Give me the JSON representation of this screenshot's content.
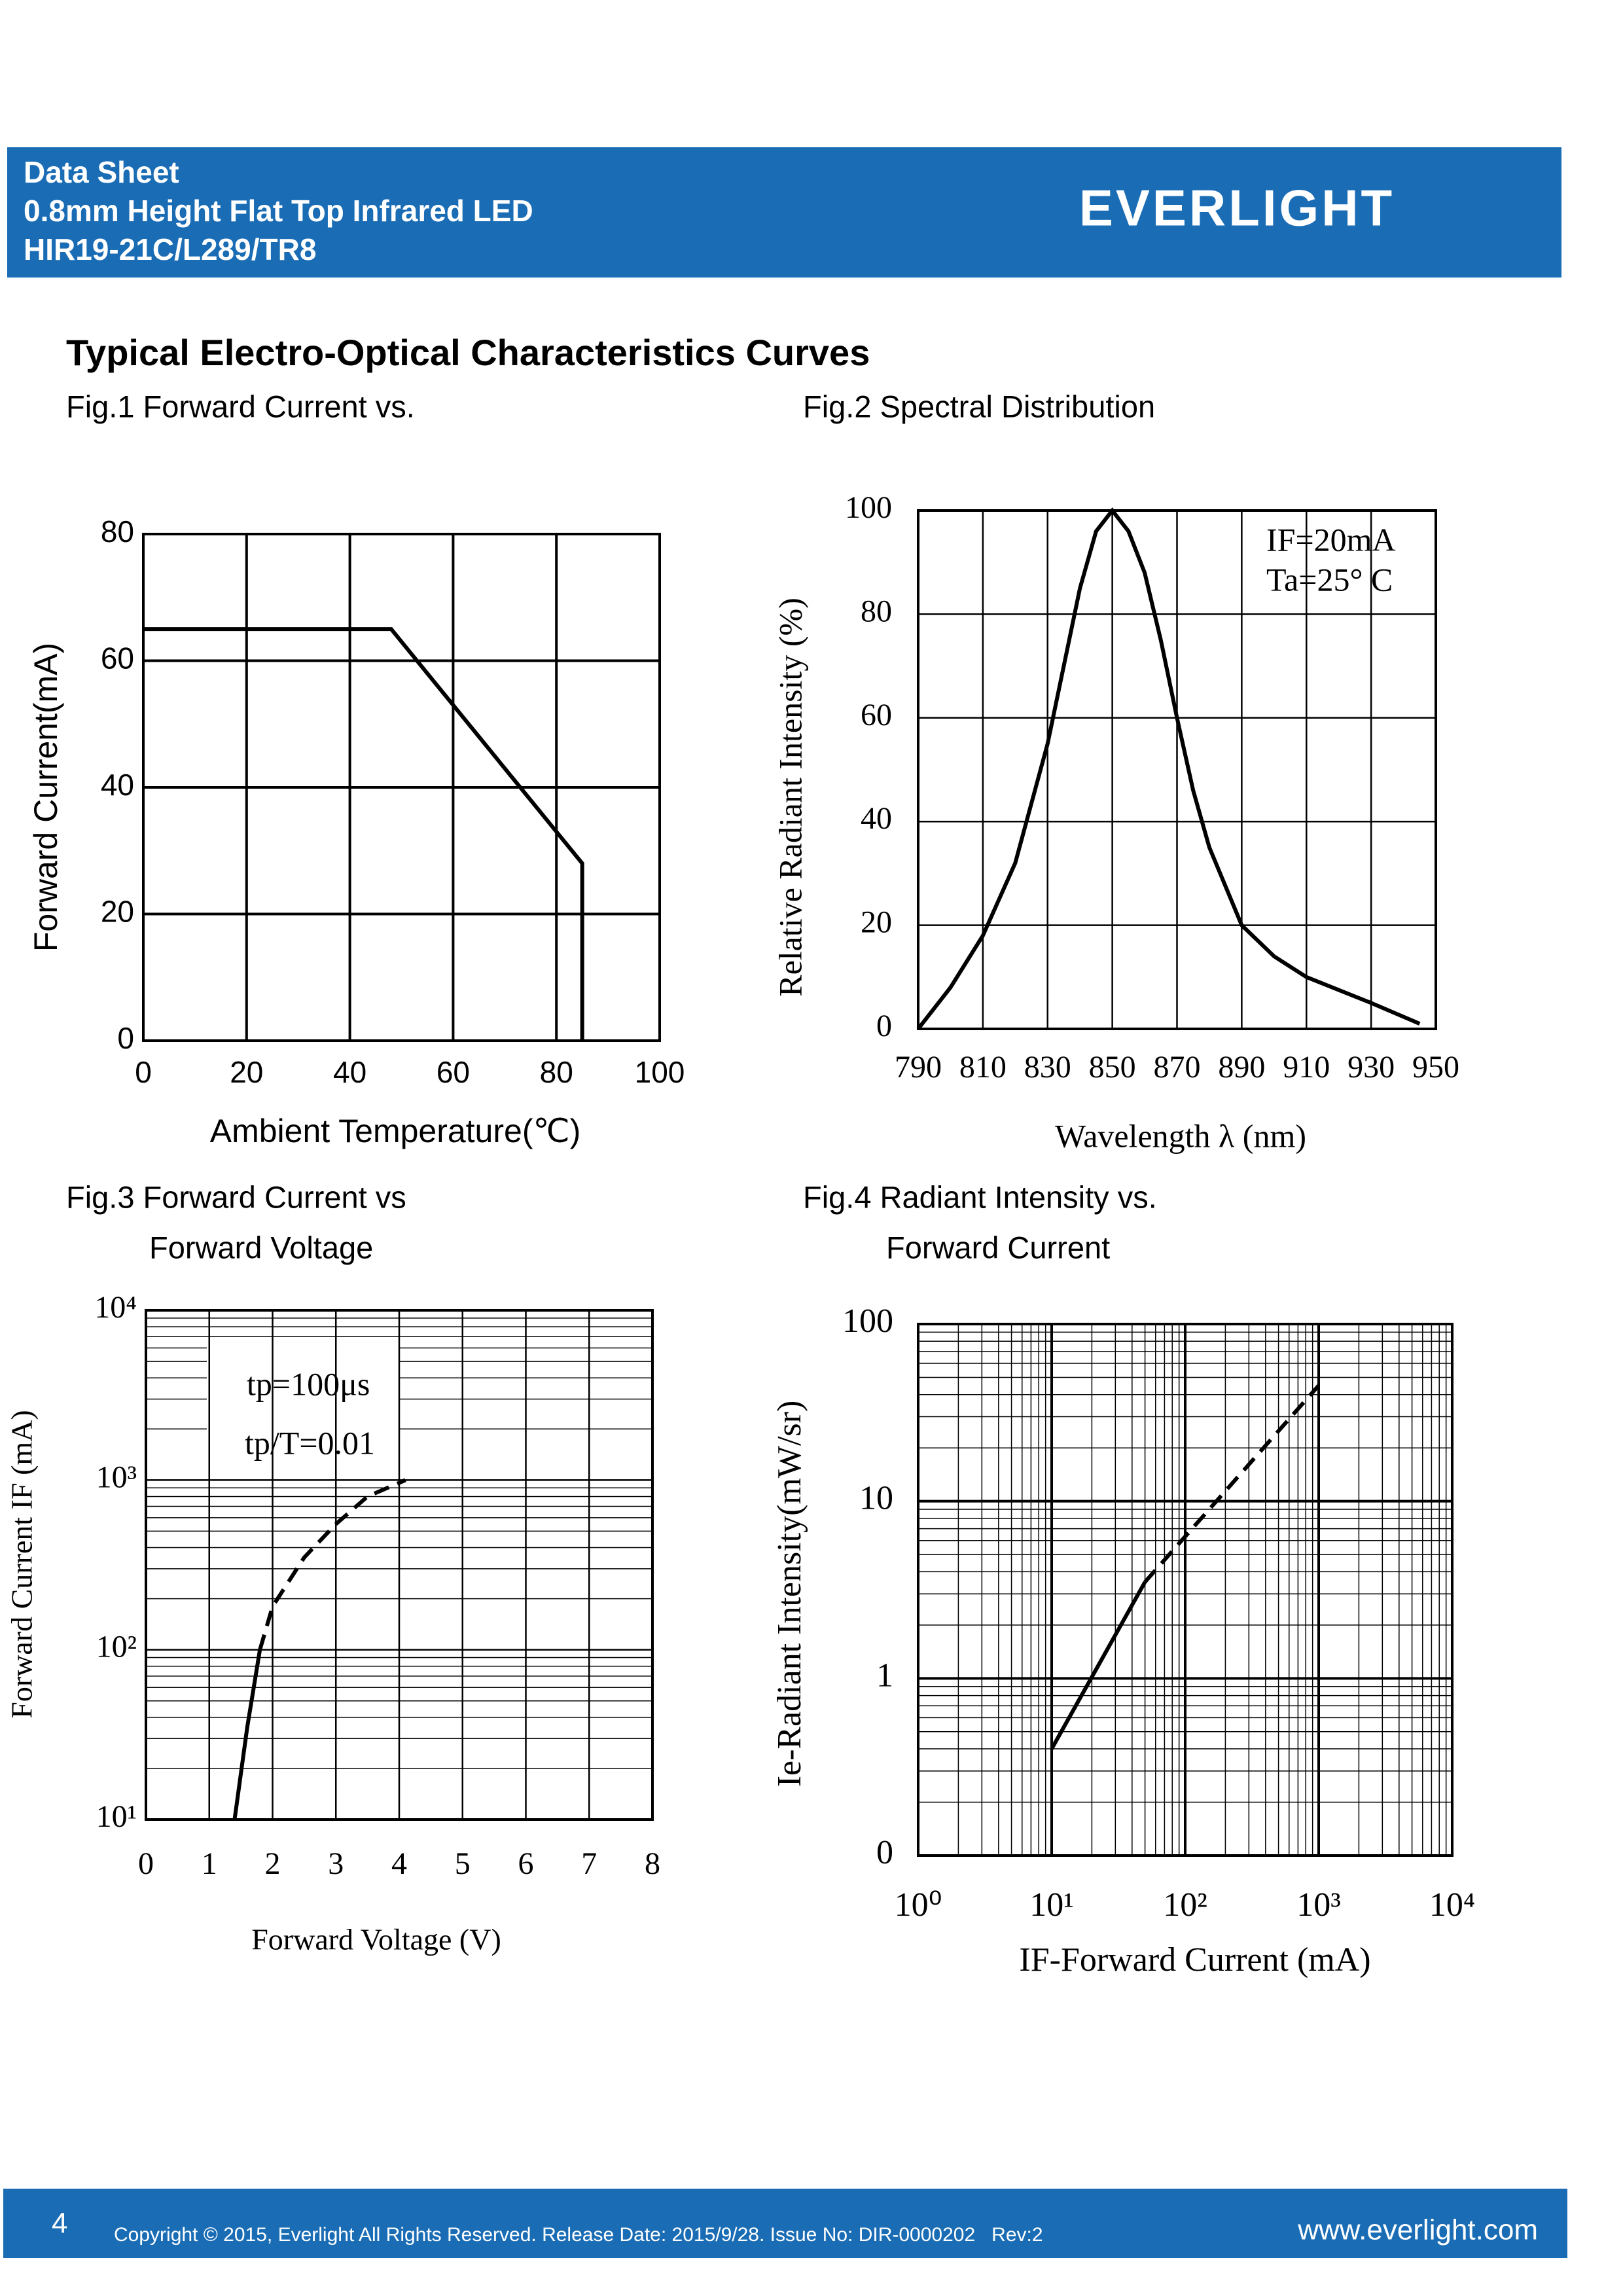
{
  "header": {
    "lines": [
      "Data Sheet",
      "0.8mm Height Flat Top Infrared LED",
      "HIR19-21C/L289/TR8"
    ],
    "logo": "EVERLIGHT"
  },
  "section_title": "Typical Electro-Optical Characteristics Curves",
  "chart_data": [
    {
      "type": "line",
      "title": [
        "Fig.1 Forward Current vs."
      ],
      "xlabel": "Ambient Temperature(℃)",
      "ylabel": "Forward Current(mA)",
      "xlim": [
        0,
        100
      ],
      "xticks": [
        0,
        20,
        40,
        60,
        80,
        100
      ],
      "ylim": [
        0,
        80
      ],
      "yticks": [
        0,
        20,
        40,
        60,
        80
      ],
      "grid": true,
      "series": [
        {
          "color": "#000000",
          "dashed": false,
          "x": [
            0,
            48,
            85,
            85
          ],
          "values": [
            65,
            65,
            28,
            0
          ]
        }
      ]
    },
    {
      "type": "line",
      "title": [
        "Fig.2 Spectral Distribution"
      ],
      "xlabel": "Wavelength λ (nm)",
      "ylabel": "Relative Radiant Intensity (%)",
      "xlim": [
        790,
        950
      ],
      "xticks": [
        790,
        810,
        830,
        850,
        870,
        890,
        910,
        930,
        950
      ],
      "ylim": [
        0,
        100
      ],
      "yticks": [
        0,
        20,
        40,
        60,
        80,
        100
      ],
      "grid": true,
      "annotations": [
        "IF=20mA",
        "Ta=25° C"
      ],
      "series": [
        {
          "color": "#000000",
          "dashed": false,
          "x": [
            790,
            800,
            810,
            820,
            830,
            835,
            840,
            845,
            850,
            855,
            860,
            865,
            870,
            875,
            880,
            890,
            900,
            910,
            930,
            945
          ],
          "values": [
            0,
            8,
            18,
            32,
            55,
            70,
            85,
            96,
            100,
            96,
            88,
            75,
            60,
            46,
            35,
            20,
            14,
            10,
            5,
            1
          ]
        }
      ]
    },
    {
      "type": "line",
      "title": [
        "Fig.3 Forward Current vs",
        "Forward Voltage"
      ],
      "xlabel": "Forward Voltage (V)",
      "ylabel": "Forward Current IF (mA)",
      "xlim": [
        0,
        8
      ],
      "xticks": [
        0,
        1,
        2,
        3,
        4,
        5,
        6,
        7,
        8
      ],
      "ylim": [
        10,
        10000
      ],
      "ylog": true,
      "yticks": [
        {
          "value": 10,
          "label": "10¹"
        },
        {
          "value": 100,
          "label": "10²"
        },
        {
          "value": 1000,
          "label": "10³"
        },
        {
          "value": 10000,
          "label": "10⁴"
        }
      ],
      "grid": true,
      "annotations": [
        "tp=100μs",
        "tp/T=0.01"
      ],
      "series": [
        {
          "color": "#000000",
          "dashed": false,
          "x": [
            1.4,
            1.6,
            1.8
          ],
          "values": [
            10,
            35,
            100
          ]
        },
        {
          "color": "#000000",
          "dashed": true,
          "x": [
            1.8,
            2.0,
            2.5,
            3.0,
            3.5,
            4.1
          ],
          "values": [
            100,
            180,
            350,
            550,
            800,
            1000
          ]
        }
      ]
    },
    {
      "type": "line",
      "title": [
        "Fig.4 Radiant Intensity vs.",
        "Forward Current"
      ],
      "xlabel": "IF-Forward Current (mA)",
      "ylabel": "Ie-Radiant Intensity(mW/sr)",
      "xlim": [
        1,
        10000
      ],
      "xlog": true,
      "xticks": [
        {
          "value": 1,
          "label": "10⁰"
        },
        {
          "value": 10,
          "label": "10¹"
        },
        {
          "value": 100,
          "label": "10²"
        },
        {
          "value": 1000,
          "label": "10³"
        },
        {
          "value": 10000,
          "label": "10⁴"
        }
      ],
      "ylim": [
        0.1,
        100
      ],
      "ylog": true,
      "yticks": [
        {
          "value": 0.1,
          "label": "0"
        },
        1,
        10,
        100
      ],
      "grid": true,
      "series": [
        {
          "color": "#000000",
          "dashed": false,
          "x": [
            10,
            50
          ],
          "values": [
            0.4,
            3.5
          ]
        },
        {
          "color": "#000000",
          "dashed": true,
          "x": [
            50,
            1000
          ],
          "values": [
            3.5,
            45
          ]
        }
      ]
    }
  ],
  "footer": {
    "page": "4",
    "copyright": "Copyright © 2015, Everlight All Rights Reserved. Release Date: 2015/9/28. Issue No: DIR-0000202   Rev:2",
    "website": "www.everlight.com"
  }
}
